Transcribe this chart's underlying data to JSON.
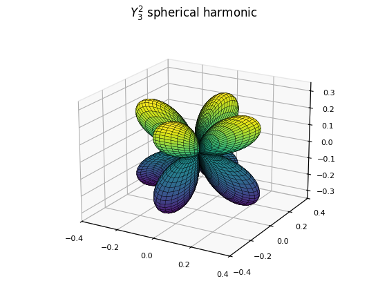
{
  "title": "$Y_3^2$ spherical harmonic",
  "title_fontsize": 12,
  "n_theta": 80,
  "n_phi": 80,
  "l": 3,
  "m": 2,
  "elev": 20,
  "azim": -60,
  "background_color": "white",
  "cmap": "viridis",
  "edgecolor": "black",
  "linewidth": 0.25,
  "alpha": 1.0,
  "xlim": [
    -0.4,
    0.4
  ],
  "ylim": [
    -0.4,
    0.4
  ],
  "zlim": [
    -0.35,
    0.35
  ],
  "xticks": [
    -0.4,
    -0.2,
    0.0,
    0.2,
    0.4
  ],
  "yticks": [
    -0.4,
    -0.2,
    0.0,
    0.2,
    0.4
  ],
  "zticks": [
    -0.3,
    -0.2,
    -0.1,
    0.0,
    0.1,
    0.2,
    0.3
  ]
}
